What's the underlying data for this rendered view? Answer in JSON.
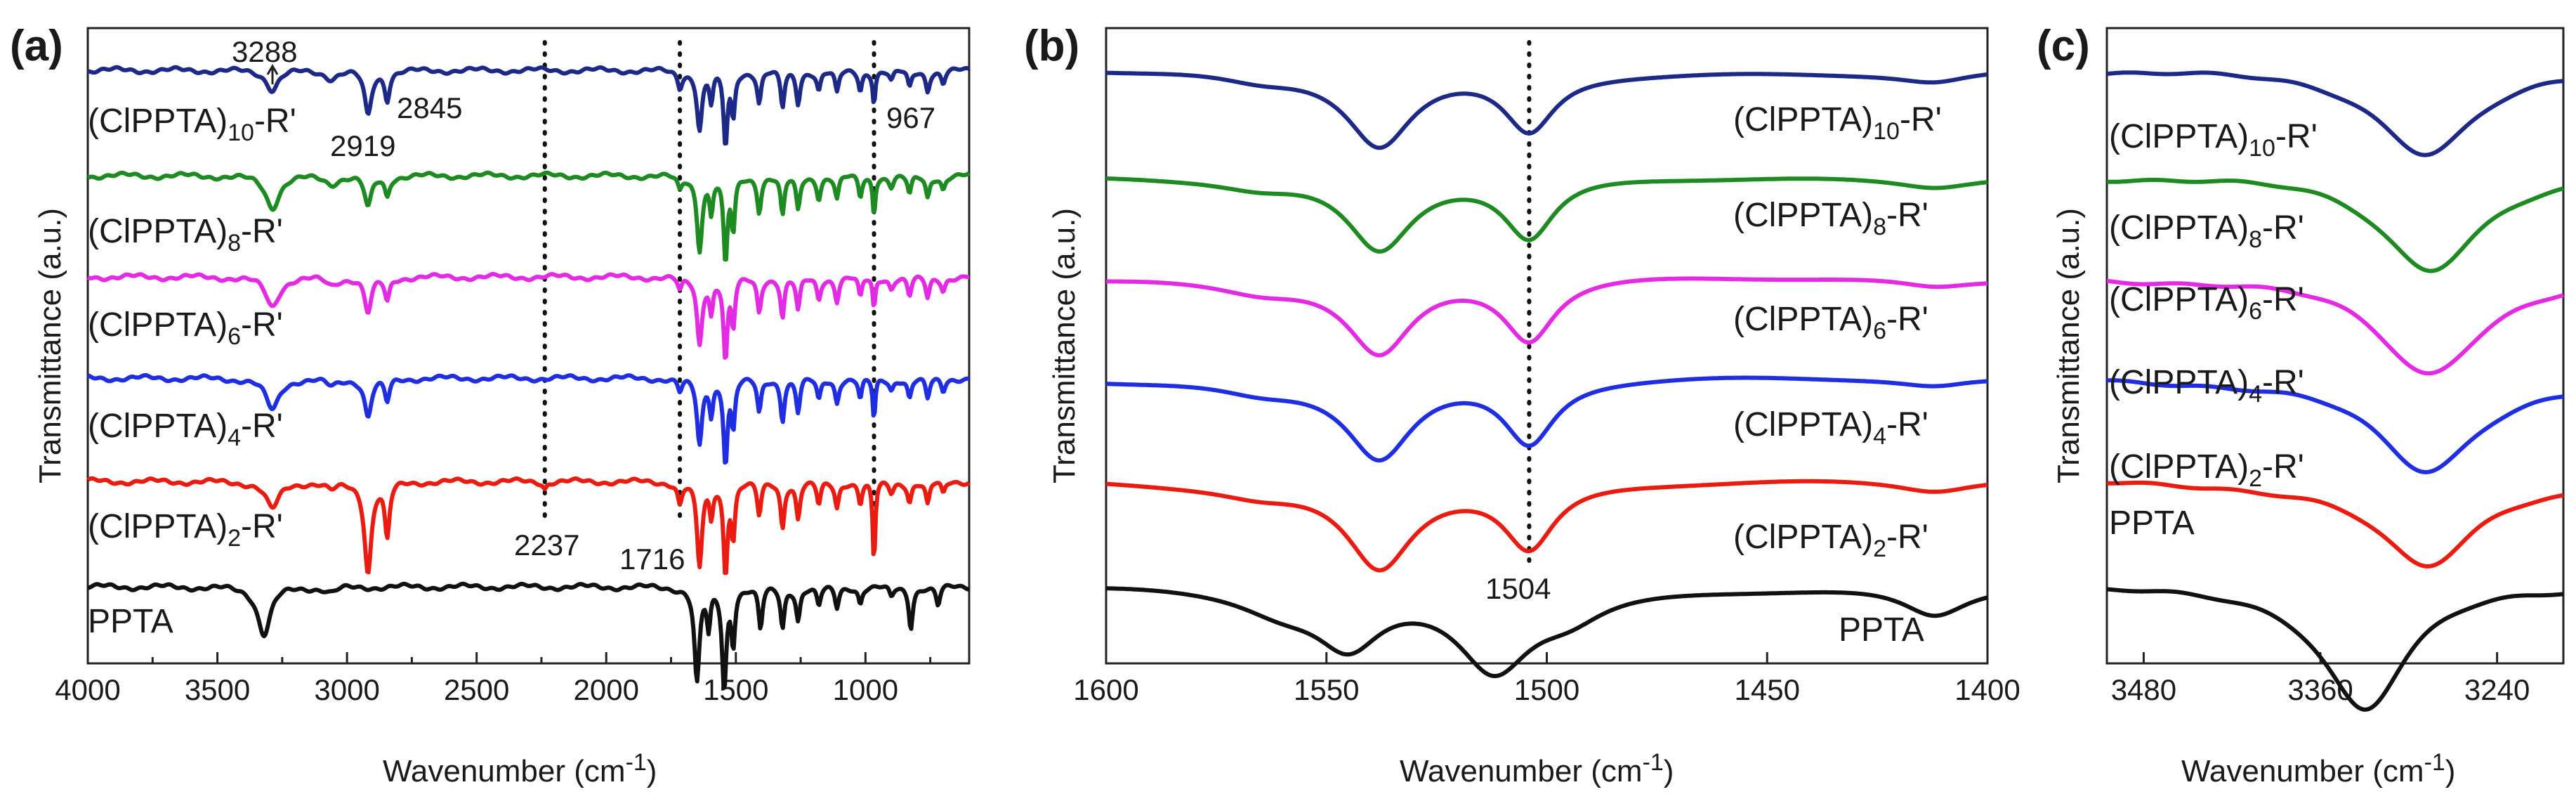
{
  "figure": {
    "series_labels": [
      "(ClPPTA)10-R'",
      "(ClPPTA)8-R'",
      "(ClPPTA)6-R'",
      "(ClPPTA)4-R'",
      "(ClPPTA)2-R'",
      "PPTA"
    ],
    "legend_parts": {
      "prefix": "(ClPPTA)",
      "suffix": "-R'",
      "subs": [
        "10",
        "8",
        "6",
        "4",
        "2"
      ],
      "ppta": "PPTA"
    }
  },
  "chart_data": [
    {
      "id": "a",
      "panel_label": "(a)",
      "type": "line",
      "xlabel": "Wavenumber (cm",
      "xlabel_sup": "-1",
      "xlabel_close": ")",
      "ylabel": "Transmittance (a.u.)",
      "xlim": [
        4000,
        600
      ],
      "xticks": [
        4000,
        3500,
        3000,
        2500,
        2000,
        1500,
        1000
      ],
      "series": [
        {
          "name": "(ClPPTA)10-R'",
          "color": "#1d2987",
          "offset": 5.3,
          "bands": [
            [
              3288,
              0.18,
              28
            ],
            [
              3060,
              0.07,
              28
            ],
            [
              2919,
              0.42,
              16
            ],
            [
              2845,
              0.26,
              11
            ],
            [
              1716,
              0.15,
              10
            ],
            [
              1640,
              0.55,
              12
            ],
            [
              1595,
              0.28,
              8
            ],
            [
              1540,
              0.7,
              9
            ],
            [
              1510,
              0.42,
              8
            ],
            [
              1410,
              0.3,
              9
            ],
            [
              1320,
              0.35,
              9
            ],
            [
              1260,
              0.3,
              9
            ],
            [
              1180,
              0.18,
              9
            ],
            [
              1110,
              0.22,
              9
            ],
            [
              1020,
              0.18,
              8
            ],
            [
              967,
              0.3,
              6
            ],
            [
              900,
              0.1,
              10
            ],
            [
              830,
              0.16,
              9
            ],
            [
              760,
              0.18,
              9
            ],
            [
              700,
              0.12,
              9
            ]
          ]
        },
        {
          "name": "(ClPPTA)8-R'",
          "color": "#1e8a22",
          "offset": 4.28,
          "bands": [
            [
              3288,
              0.3,
              32
            ],
            [
              3060,
              0.07,
              28
            ],
            [
              2919,
              0.3,
              16
            ],
            [
              2845,
              0.18,
              11
            ],
            [
              1716,
              0.12,
              10
            ],
            [
              1640,
              0.68,
              12
            ],
            [
              1595,
              0.32,
              8
            ],
            [
              1540,
              0.82,
              9
            ],
            [
              1510,
              0.5,
              8
            ],
            [
              1410,
              0.32,
              9
            ],
            [
              1320,
              0.38,
              9
            ],
            [
              1260,
              0.32,
              9
            ],
            [
              1180,
              0.2,
              9
            ],
            [
              1110,
              0.22,
              9
            ],
            [
              1020,
              0.2,
              8
            ],
            [
              967,
              0.35,
              6
            ],
            [
              900,
              0.1,
              10
            ],
            [
              830,
              0.18,
              9
            ],
            [
              760,
              0.2,
              9
            ],
            [
              700,
              0.12,
              9
            ]
          ]
        },
        {
          "name": "(ClPPTA)6-R'",
          "color": "#e42be4",
          "offset": 3.3,
          "bands": [
            [
              3288,
              0.28,
              32
            ],
            [
              3060,
              0.07,
              28
            ],
            [
              2919,
              0.34,
              16
            ],
            [
              2845,
              0.22,
              11
            ],
            [
              1716,
              0.12,
              10
            ],
            [
              1640,
              0.62,
              12
            ],
            [
              1595,
              0.3,
              8
            ],
            [
              1540,
              0.78,
              9
            ],
            [
              1510,
              0.45,
              8
            ],
            [
              1410,
              0.32,
              9
            ],
            [
              1320,
              0.38,
              9
            ],
            [
              1260,
              0.32,
              9
            ],
            [
              1180,
              0.2,
              9
            ],
            [
              1110,
              0.22,
              9
            ],
            [
              1020,
              0.2,
              8
            ],
            [
              967,
              0.3,
              6
            ],
            [
              900,
              0.1,
              10
            ],
            [
              830,
              0.18,
              9
            ],
            [
              760,
              0.2,
              9
            ],
            [
              700,
              0.12,
              9
            ]
          ]
        },
        {
          "name": "(ClPPTA)4-R'",
          "color": "#1f2ee0",
          "offset": 2.32,
          "bands": [
            [
              3288,
              0.3,
              32
            ],
            [
              3060,
              0.07,
              28
            ],
            [
              2919,
              0.36,
              16
            ],
            [
              2845,
              0.22,
              11
            ],
            [
              1716,
              0.12,
              10
            ],
            [
              1640,
              0.62,
              12
            ],
            [
              1595,
              0.3,
              8
            ],
            [
              1540,
              0.78,
              9
            ],
            [
              1510,
              0.45,
              8
            ],
            [
              1410,
              0.32,
              9
            ],
            [
              1320,
              0.38,
              9
            ],
            [
              1260,
              0.32,
              9
            ],
            [
              1180,
              0.2,
              9
            ],
            [
              1110,
              0.22,
              9
            ],
            [
              1020,
              0.2,
              8
            ],
            [
              967,
              0.4,
              6
            ],
            [
              900,
              0.1,
              10
            ],
            [
              830,
              0.18,
              9
            ],
            [
              760,
              0.2,
              9
            ],
            [
              700,
              0.12,
              9
            ]
          ]
        },
        {
          "name": "(ClPPTA)2-R'",
          "color": "#ea1b10",
          "offset": 1.32,
          "bands": [
            [
              3288,
              0.26,
              32
            ],
            [
              3060,
              0.07,
              28
            ],
            [
              2919,
              0.85,
              16
            ],
            [
              2845,
              0.52,
              11
            ],
            [
              2237,
              0.06,
              8
            ],
            [
              1716,
              0.2,
              10
            ],
            [
              1640,
              0.8,
              12
            ],
            [
              1595,
              0.3,
              8
            ],
            [
              1540,
              0.85,
              9
            ],
            [
              1510,
              0.5,
              8
            ],
            [
              1410,
              0.32,
              9
            ],
            [
              1320,
              0.42,
              9
            ],
            [
              1260,
              0.34,
              9
            ],
            [
              1180,
              0.22,
              9
            ],
            [
              1110,
              0.24,
              9
            ],
            [
              1020,
              0.2,
              8
            ],
            [
              967,
              0.78,
              6
            ],
            [
              900,
              0.1,
              10
            ],
            [
              830,
              0.18,
              9
            ],
            [
              760,
              0.22,
              9
            ],
            [
              700,
              0.12,
              9
            ]
          ]
        },
        {
          "name": "PPTA",
          "color": "#111111",
          "offset": 0.3,
          "bands": [
            [
              3320,
              0.45,
              30
            ],
            [
              3060,
              0.05,
              28
            ],
            [
              1650,
              0.9,
              12
            ],
            [
              1605,
              0.38,
              8
            ],
            [
              1545,
              0.95,
              10
            ],
            [
              1510,
              0.5,
              8
            ],
            [
              1405,
              0.4,
              9
            ],
            [
              1320,
              0.38,
              9
            ],
            [
              1260,
              0.3,
              9
            ],
            [
              1180,
              0.18,
              9
            ],
            [
              1110,
              0.2,
              9
            ],
            [
              1020,
              0.15,
              8
            ],
            [
              900,
              0.1,
              10
            ],
            [
              825,
              0.38,
              9
            ],
            [
              720,
              0.18,
              9
            ]
          ]
        }
      ],
      "annotations": [
        {
          "text": "3288",
          "x": 3288
        },
        {
          "text": "2919",
          "x": 2919
        },
        {
          "text": "2845",
          "x": 2845
        },
        {
          "text": "967",
          "x": 967
        },
        {
          "text": "2237",
          "x": 2237
        },
        {
          "text": "1716",
          "x": 1716
        }
      ],
      "dotted_lines": [
        2237,
        1716,
        967
      ]
    },
    {
      "id": "b",
      "panel_label": "(b)",
      "type": "line",
      "xlabel": "Wavenumber (cm",
      "xlabel_sup": "-1",
      "xlabel_close": ")",
      "ylabel": "Transmittance (a.u.)",
      "xlim": [
        1600,
        1400
      ],
      "xticks": [
        1600,
        1550,
        1500,
        1450,
        1400
      ],
      "series": [
        {
          "name": "(ClPPTA)10-R'",
          "color": "#1d2987",
          "offset": 5.3,
          "bands": [
            [
              1538,
              0.7,
              9
            ],
            [
              1504,
              0.55,
              7
            ],
            [
              1565,
              0.1,
              12
            ],
            [
              1412,
              0.1,
              10
            ]
          ]
        },
        {
          "name": "(ClPPTA)8-R'",
          "color": "#1e8a22",
          "offset": 4.28,
          "bands": [
            [
              1538,
              0.7,
              9
            ],
            [
              1504,
              0.58,
              7
            ],
            [
              1565,
              0.1,
              12
            ],
            [
              1412,
              0.08,
              10
            ]
          ]
        },
        {
          "name": "(ClPPTA)6-R'",
          "color": "#e42be4",
          "offset": 3.3,
          "bands": [
            [
              1538,
              0.72,
              9
            ],
            [
              1504,
              0.58,
              7
            ],
            [
              1565,
              0.1,
              12
            ],
            [
              1412,
              0.08,
              10
            ]
          ]
        },
        {
          "name": "(ClPPTA)4-R'",
          "color": "#1f2ee0",
          "offset": 2.32,
          "bands": [
            [
              1538,
              0.72,
              9
            ],
            [
              1504,
              0.6,
              7
            ],
            [
              1565,
              0.1,
              12
            ],
            [
              1412,
              0.08,
              10
            ]
          ]
        },
        {
          "name": "(ClPPTA)2-R'",
          "color": "#ea1b10",
          "offset": 1.32,
          "bands": [
            [
              1538,
              0.78,
              9
            ],
            [
              1504,
              0.6,
              7
            ],
            [
              1565,
              0.1,
              12
            ],
            [
              1412,
              0.1,
              10
            ]
          ]
        },
        {
          "name": "PPTA",
          "color": "#111111",
          "offset": 0.3,
          "bands": [
            [
              1545,
              0.5,
              9
            ],
            [
              1512,
              0.72,
              10
            ],
            [
              1560,
              0.18,
              12
            ],
            [
              1412,
              0.28,
              9
            ],
            [
              1495,
              0.2,
              10
            ]
          ]
        }
      ],
      "annotations": [
        {
          "text": "1504",
          "x": 1504
        }
      ],
      "dotted_lines": [
        1504
      ]
    },
    {
      "id": "c",
      "panel_label": "(c)",
      "type": "line",
      "xlabel": "Wavenumber (cm",
      "xlabel_sup": "-1",
      "xlabel_close": ")",
      "ylabel": "Transmittance (a.u.)",
      "xlim": [
        3505,
        3195
      ],
      "xticks": [
        3480,
        3360,
        3240
      ],
      "series": [
        {
          "name": "(ClPPTA)10-R'",
          "color": "#1d2987",
          "offset": 5.3,
          "bands": [
            [
              3288,
              0.78,
              40
            ]
          ]
        },
        {
          "name": "(ClPPTA)8-R'",
          "color": "#1e8a22",
          "offset": 4.28,
          "bands": [
            [
              3286,
              0.88,
              40
            ]
          ]
        },
        {
          "name": "(ClPPTA)6-R'",
          "color": "#e42be4",
          "offset": 3.3,
          "bands": [
            [
              3287,
              0.92,
              42
            ]
          ]
        },
        {
          "name": "(ClPPTA)4-R'",
          "color": "#1f2ee0",
          "offset": 2.32,
          "bands": [
            [
              3288,
              0.9,
              42
            ]
          ]
        },
        {
          "name": "(ClPPTA)2-R'",
          "color": "#ea1b10",
          "offset": 1.32,
          "bands": [
            [
              3288,
              0.82,
              40
            ]
          ]
        },
        {
          "name": "PPTA",
          "color": "#111111",
          "offset": 0.3,
          "bands": [
            [
              3330,
              1.15,
              34
            ]
          ]
        }
      ],
      "annotations": [],
      "dotted_lines": []
    }
  ]
}
